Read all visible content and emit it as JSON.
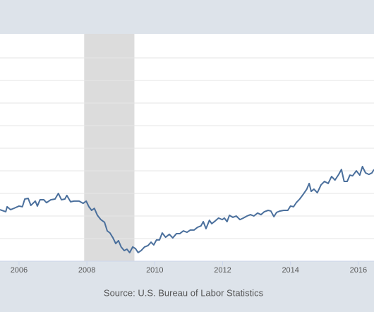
{
  "chart_data": {
    "type": "line",
    "source": "Source: U.S. Bureau of Labor Statistics",
    "x": [
      2005.44,
      2005.61,
      2005.65,
      2005.75,
      2005.85,
      2006.0,
      2006.1,
      2006.17,
      2006.27,
      2006.35,
      2006.48,
      2006.54,
      2006.62,
      2006.73,
      2006.81,
      2006.94,
      2007.06,
      2007.16,
      2007.25,
      2007.35,
      2007.41,
      2007.52,
      2007.62,
      2007.77,
      2007.89,
      2007.98,
      2008.06,
      2008.14,
      2008.22,
      2008.31,
      2008.41,
      2008.52,
      2008.6,
      2008.68,
      2008.77,
      2008.85,
      2008.93,
      2009.01,
      2009.1,
      2009.18,
      2009.26,
      2009.35,
      2009.43,
      2009.51,
      2009.6,
      2009.7,
      2009.8,
      2009.89,
      2009.97,
      2010.05,
      2010.14,
      2010.22,
      2010.32,
      2010.43,
      2010.53,
      2010.64,
      2010.74,
      2010.84,
      2010.95,
      2011.05,
      2011.16,
      2011.26,
      2011.36,
      2011.43,
      2011.51,
      2011.61,
      2011.68,
      2011.78,
      2011.88,
      2011.99,
      2012.05,
      2012.13,
      2012.2,
      2012.3,
      2012.4,
      2012.51,
      2012.61,
      2012.72,
      2012.82,
      2012.92,
      2013.03,
      2013.13,
      2013.23,
      2013.34,
      2013.42,
      2013.51,
      2013.59,
      2013.69,
      2013.8,
      2013.92,
      2014.0,
      2014.09,
      2014.17,
      2014.27,
      2014.38,
      2014.48,
      2014.55,
      2014.61,
      2014.69,
      2014.79,
      2014.9,
      2015.0,
      2015.11,
      2015.21,
      2015.31,
      2015.42,
      2015.5,
      2015.58,
      2015.67,
      2015.75,
      2015.83,
      2015.94,
      2016.04,
      2016.12,
      2016.21,
      2016.31,
      2016.4,
      2016.46
    ],
    "series": [
      {
        "color": "#4a6f9c",
        "values": [
          2.28,
          2.19,
          2.41,
          2.28,
          2.34,
          2.44,
          2.41,
          2.75,
          2.78,
          2.47,
          2.66,
          2.44,
          2.72,
          2.72,
          2.59,
          2.72,
          2.75,
          3.0,
          2.72,
          2.75,
          2.91,
          2.63,
          2.66,
          2.66,
          2.56,
          2.66,
          2.41,
          2.25,
          2.34,
          2.03,
          1.84,
          1.72,
          1.34,
          1.25,
          1.03,
          0.78,
          0.91,
          0.63,
          0.47,
          0.53,
          0.38,
          0.63,
          0.56,
          0.38,
          0.47,
          0.63,
          0.69,
          0.84,
          0.72,
          0.94,
          0.94,
          1.25,
          1.06,
          1.19,
          1.03,
          1.22,
          1.22,
          1.34,
          1.28,
          1.38,
          1.38,
          1.5,
          1.56,
          1.75,
          1.44,
          1.81,
          1.66,
          1.78,
          1.91,
          1.84,
          1.91,
          1.75,
          2.03,
          1.94,
          2.0,
          1.84,
          1.91,
          2.0,
          2.06,
          2.0,
          2.13,
          2.06,
          2.19,
          2.25,
          2.22,
          1.97,
          2.16,
          2.22,
          2.25,
          2.25,
          2.44,
          2.41,
          2.59,
          2.75,
          2.97,
          3.19,
          3.44,
          3.09,
          3.19,
          3.03,
          3.38,
          3.53,
          3.44,
          3.75,
          3.59,
          3.84,
          4.06,
          3.53,
          3.53,
          3.81,
          3.78,
          4.0,
          3.81,
          4.19,
          3.91,
          3.84,
          3.91,
          4.06
        ]
      }
    ],
    "xlim": [
      2005.44,
      2016.46
    ],
    "xticks": [
      2006,
      2008,
      2010,
      2012,
      2014,
      2016
    ],
    "ylim": [
      0,
      10
    ],
    "yticks": [
      1,
      2,
      3,
      4,
      5,
      6,
      7,
      8,
      9
    ],
    "grid": true,
    "shaded_regions": [
      [
        2007.92,
        2009.4
      ]
    ],
    "shade_color": "#dcdcdc"
  }
}
